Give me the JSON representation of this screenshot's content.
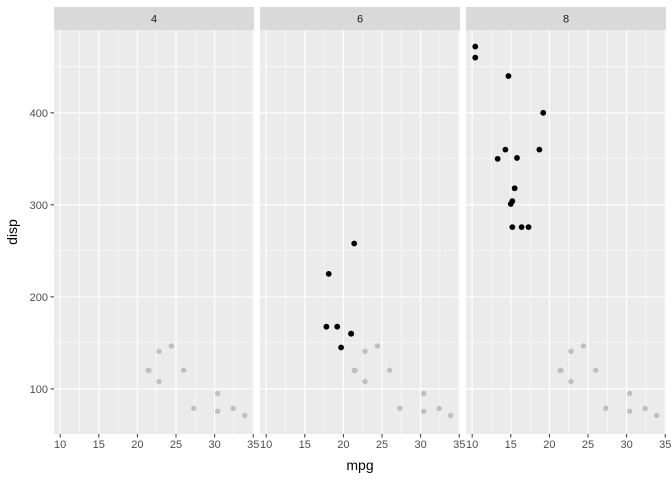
{
  "chart_data": {
    "type": "scatter",
    "title": "",
    "xlabel": "mpg",
    "ylabel": "disp",
    "facet_var_values": [
      "4",
      "6",
      "8"
    ],
    "xlim": [
      9.2,
      35.1
    ],
    "ylim": [
      51,
      490
    ],
    "x_ticks": [
      10,
      15,
      20,
      25,
      30,
      35
    ],
    "y_ticks": [
      100,
      200,
      300,
      400
    ],
    "grid": true,
    "foreground_color": "#000000",
    "background_color": "#bfbfbf",
    "background_points": [
      {
        "x": 21.4,
        "y": 120.1
      },
      {
        "x": 22.8,
        "y": 108
      },
      {
        "x": 24.4,
        "y": 146.7
      },
      {
        "x": 22.8,
        "y": 140.8
      },
      {
        "x": 32.4,
        "y": 78.7
      },
      {
        "x": 30.4,
        "y": 75.7
      },
      {
        "x": 33.9,
        "y": 71.1
      },
      {
        "x": 21.5,
        "y": 120.1
      },
      {
        "x": 27.3,
        "y": 79
      },
      {
        "x": 26,
        "y": 120.3
      },
      {
        "x": 30.4,
        "y": 95.1
      }
    ],
    "panels": [
      {
        "label": "4",
        "points": []
      },
      {
        "label": "6",
        "points": [
          {
            "x": 21,
            "y": 160
          },
          {
            "x": 21,
            "y": 160
          },
          {
            "x": 21.4,
            "y": 258
          },
          {
            "x": 18.1,
            "y": 225
          },
          {
            "x": 19.2,
            "y": 167.6
          },
          {
            "x": 17.8,
            "y": 167.6
          },
          {
            "x": 19.7,
            "y": 145
          }
        ]
      },
      {
        "label": "8",
        "points": [
          {
            "x": 18.7,
            "y": 360
          },
          {
            "x": 14.3,
            "y": 360
          },
          {
            "x": 16.4,
            "y": 275.8
          },
          {
            "x": 17.3,
            "y": 275.8
          },
          {
            "x": 15.2,
            "y": 275.8
          },
          {
            "x": 10.4,
            "y": 472
          },
          {
            "x": 10.4,
            "y": 460
          },
          {
            "x": 14.7,
            "y": 440
          },
          {
            "x": 15.5,
            "y": 318
          },
          {
            "x": 15.2,
            "y": 304
          },
          {
            "x": 13.3,
            "y": 350
          },
          {
            "x": 19.2,
            "y": 400
          },
          {
            "x": 15.8,
            "y": 351
          },
          {
            "x": 15,
            "y": 301
          }
        ]
      }
    ]
  }
}
